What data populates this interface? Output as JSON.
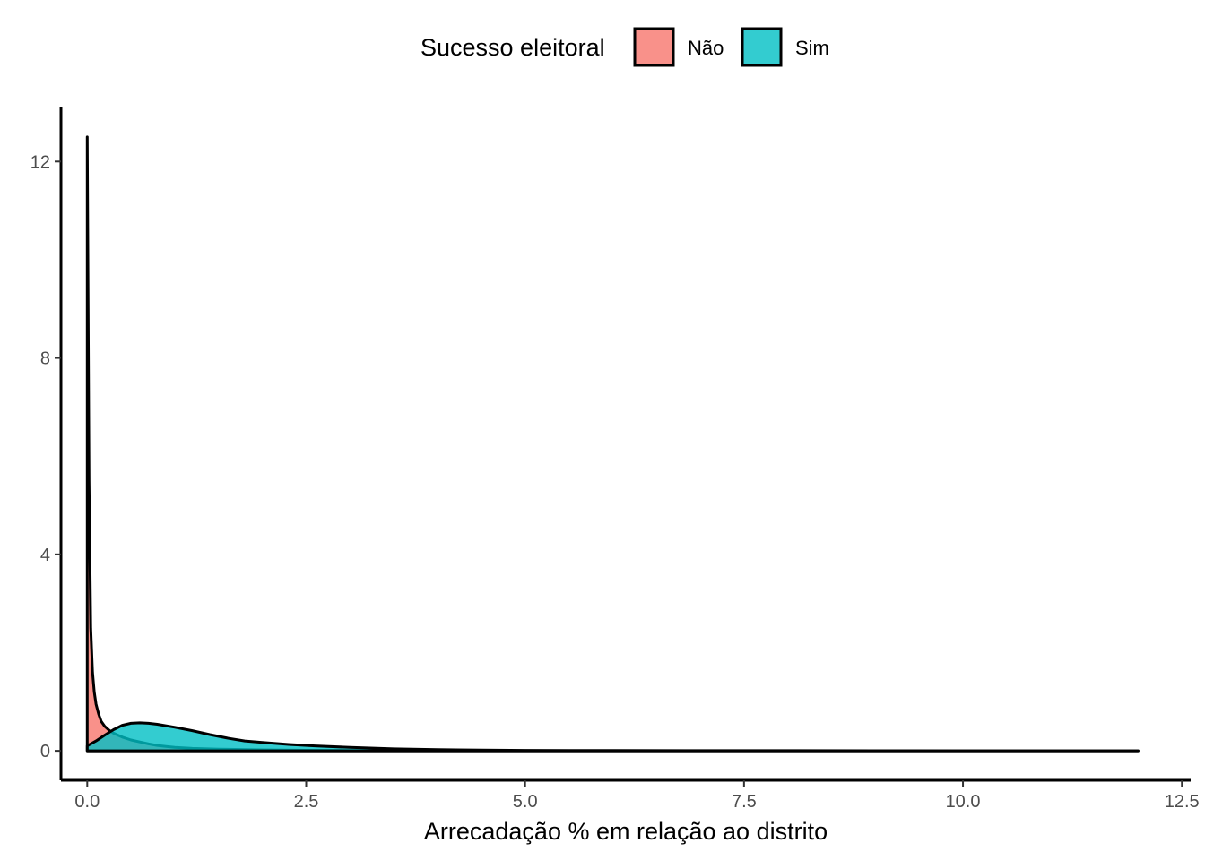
{
  "chart_data": {
    "type": "area",
    "subtype": "density",
    "title": "",
    "xlabel": "Arrecadação % em relação ao distrito",
    "ylabel": "",
    "xlim": [
      -0.3,
      12.6
    ],
    "ylim": [
      -0.6,
      13.1
    ],
    "x_ticks": [
      0,
      2.5,
      5,
      7.5,
      10,
      12.5
    ],
    "x_tick_labels": [
      "0.0",
      "2.5",
      "5.0",
      "7.5",
      "10.0",
      "12.5"
    ],
    "y_ticks": [
      0,
      4,
      8,
      12
    ],
    "y_tick_labels": [
      "0",
      "4",
      "8",
      "12"
    ],
    "grid": false,
    "legend": {
      "title": "Sucesso eleitoral",
      "position": "top",
      "entries": [
        "Não",
        "Sim"
      ]
    },
    "series": [
      {
        "name": "Não",
        "color": "#F8766D",
        "x": [
          0,
          0.01,
          0.02,
          0.04,
          0.06,
          0.08,
          0.1,
          0.13,
          0.16,
          0.2,
          0.25,
          0.3,
          0.35,
          0.4,
          0.5,
          0.6,
          0.7,
          0.8,
          0.9,
          1.0,
          1.2,
          1.5,
          2.0,
          2.5,
          3.0,
          4.0,
          5.0,
          6.0,
          8.0,
          10.0,
          12.0
        ],
        "y": [
          12.5,
          9.0,
          5.5,
          2.5,
          1.6,
          1.2,
          0.95,
          0.75,
          0.6,
          0.5,
          0.42,
          0.36,
          0.32,
          0.28,
          0.22,
          0.18,
          0.14,
          0.11,
          0.09,
          0.07,
          0.05,
          0.035,
          0.02,
          0.012,
          0.008,
          0.004,
          0.002,
          0.001,
          0.0005,
          0.0002,
          0.0
        ]
      },
      {
        "name": "Sim",
        "color": "#00BFC4",
        "x": [
          0,
          0.1,
          0.2,
          0.3,
          0.4,
          0.5,
          0.6,
          0.7,
          0.8,
          1.0,
          1.2,
          1.4,
          1.6,
          1.8,
          2.0,
          2.3,
          2.6,
          3.0,
          3.5,
          4.0,
          4.5,
          5.0,
          5.5,
          6.0,
          7.0,
          8.0,
          9.0,
          10.0,
          11.0,
          12.0
        ],
        "y": [
          0.1,
          0.2,
          0.32,
          0.43,
          0.52,
          0.56,
          0.57,
          0.56,
          0.54,
          0.48,
          0.41,
          0.33,
          0.26,
          0.2,
          0.17,
          0.13,
          0.1,
          0.07,
          0.04,
          0.025,
          0.015,
          0.01,
          0.007,
          0.006,
          0.004,
          0.003,
          0.002,
          0.001,
          0.0005,
          0.0
        ]
      }
    ]
  }
}
